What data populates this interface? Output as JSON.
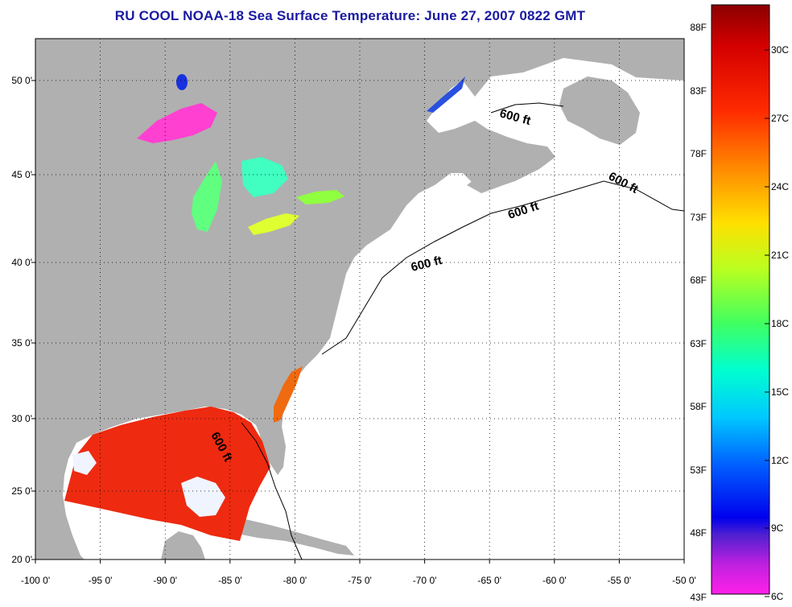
{
  "title": "RU COOL  NOAA-18  Sea Surface Temperature:  June 27, 2007 0822 GMT",
  "map": {
    "lon_ticks": [
      "-100 0'",
      "-95 0'",
      "-90 0'",
      "-85 0'",
      "-80 0'",
      "-75 0'",
      "-70 0'",
      "-65 0'",
      "-60 0'",
      "-55 0'",
      "-50 0'"
    ],
    "lat_ticks": [
      "50 0'",
      "45 0'",
      "40 0'",
      "35 0'",
      "30 0'",
      "25 0'",
      "20 0'"
    ],
    "depth_labels": [
      "600 ft",
      "600 ft",
      "600 ft",
      "600 ft",
      "600 ft"
    ],
    "colors": {
      "land": "#b0b0b0",
      "ocean": "#ffffff",
      "gulf_sst": "#ee2a10",
      "grid": "#000000"
    }
  },
  "colorbar": {
    "fahrenheit_ticks": [
      "88F",
      "83F",
      "78F",
      "73F",
      "68F",
      "63F",
      "58F",
      "53F",
      "48F",
      "43F"
    ],
    "celsius_ticks": [
      "30C",
      "27C",
      "24C",
      "21C",
      "18C",
      "15C",
      "12C",
      "9C",
      "6C"
    ]
  }
}
